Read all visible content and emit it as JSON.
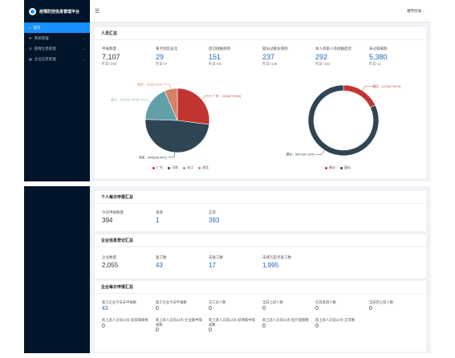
{
  "app": {
    "title": "疫情防控信息管理平台"
  },
  "header": {
    "user": "魏宇欣会..."
  },
  "sidebar": {
    "items": [
      {
        "label": "首页",
        "active": true,
        "has_children": false
      },
      {
        "label": "系统管理",
        "active": false,
        "has_children": true
      },
      {
        "label": "疫情信息管理",
        "active": false,
        "has_children": true
      },
      {
        "label": "企业信息管理",
        "active": false,
        "has_children": true
      }
    ]
  },
  "personnel": {
    "title": "人员汇总",
    "stats": [
      {
        "label": "申报数量",
        "value": "7,107",
        "sub": "昨日+250",
        "highlight": false
      },
      {
        "label": "重点地区返北",
        "value": "29",
        "sub": "昨日+0",
        "highlight": true
      },
      {
        "label": "密切接触病例",
        "value": "151",
        "sub": "昨日+80",
        "highlight": true
      },
      {
        "label": "疑似过敏多病例",
        "value": "237",
        "sub": "昨日+148",
        "highlight": true
      },
      {
        "label": "本人或家人有接触症状",
        "value": "292",
        "sub": "昨日+184",
        "highlight": true
      },
      {
        "label": "未过隔离期",
        "value": "5,380",
        "sub": "昨日-11",
        "highlight": true
      }
    ]
  },
  "chart_data": [
    {
      "type": "pie",
      "slices": [
        {
          "name": "广东",
          "value": 1921,
          "label": "广东：1921(27.03%)",
          "color": "#c23531"
        },
        {
          "name": "河南",
          "value": 3446,
          "label": "河南：3446(48.49%)",
          "color": "#2f4554"
        },
        {
          "name": "浙江",
          "value": 1277,
          "label": "浙江：1277(17.97%)",
          "color": "#61a0a8"
        },
        {
          "name": "湖北",
          "value": 463,
          "label": "湖北：463(6.51%)",
          "color": "#d48265"
        }
      ],
      "legend": [
        "广东",
        "河南",
        "浙江",
        "湖北"
      ],
      "legend_position": "bottom"
    },
    {
      "type": "pie",
      "donut": true,
      "slices": [
        {
          "name": "确诊",
          "value": 1270,
          "label": "确诊：1270(17.87%)",
          "color": "#c23531"
        },
        {
          "name": "疑似",
          "value": 5837,
          "label": "疑似：5837(82.13%)",
          "color": "#2f4554"
        }
      ],
      "legend": [
        "确诊",
        "疑似"
      ],
      "legend_position": "bottom"
    }
  ],
  "personal_daily": {
    "title": "个人每日申报汇总",
    "stats": [
      {
        "label": "今日申报数量",
        "value": "394",
        "highlight": false
      },
      {
        "label": "发烧",
        "value": "1",
        "highlight": true
      },
      {
        "label": "正常",
        "value": "393",
        "highlight": true
      }
    ]
  },
  "enterprise": {
    "title": "企业信息登记汇总",
    "stats": [
      {
        "label": "企业数量",
        "value": "2,055",
        "highlight": false
      },
      {
        "label": "复工数",
        "value": "43",
        "highlight": true
      },
      {
        "label": "未复工数",
        "value": "17",
        "highlight": true
      },
      {
        "label": "未填写是否复工数",
        "value": "1,995",
        "highlight": true
      }
    ]
  },
  "enterprise_daily": {
    "title": "企业每日申报汇总",
    "row1": [
      {
        "label": "复工企业今日未申报数",
        "value": "43",
        "highlight": true
      },
      {
        "label": "复工企业今日申报数",
        "value": "0",
        "highlight": false
      },
      {
        "label": "员工总人数",
        "value": "0",
        "highlight": false
      },
      {
        "label": "当日上班人数",
        "value": "0",
        "highlight": false
      },
      {
        "label": "在岗发烧人数",
        "value": "0",
        "highlight": false
      },
      {
        "label": "当日新上班人数",
        "value": "0",
        "highlight": false
      }
    ],
    "row2": [
      {
        "label": "新上班人员前14天-居家隔离数",
        "value": "0"
      },
      {
        "label": "新上班人员前14天-企业集中隔离数",
        "value": "0"
      },
      {
        "label": "新上班人员前14天-就地集中隔离数",
        "value": "0"
      },
      {
        "label": "新上班人员前14天-医疗观察数",
        "value": "0"
      },
      {
        "label": "新上班人员前14天-正常数",
        "value": "0"
      }
    ]
  }
}
